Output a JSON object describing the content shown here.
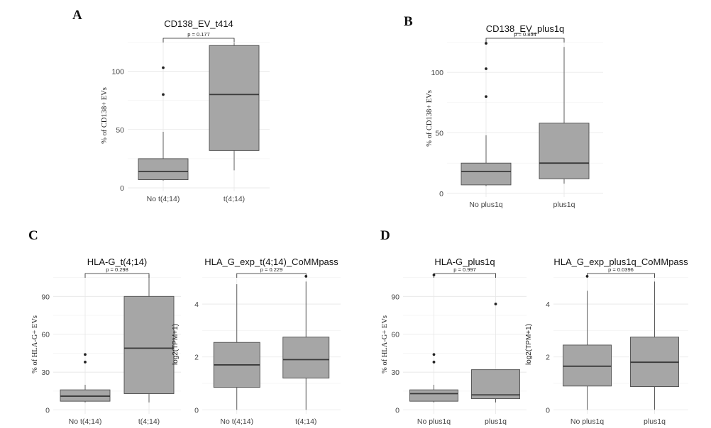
{
  "panel_labels": [
    "A",
    "B",
    "C",
    "D"
  ],
  "colors": {
    "box_fill": "#a6a6a6",
    "box_stroke": "#4d4d4d",
    "median": "#3a3a3a",
    "outlier": "#222222",
    "grid": "#e6e6e6"
  },
  "chart_data": [
    {
      "type": "boxplot",
      "title": "CD138_EV_t414",
      "ylabel": "% of CD138+ EVs",
      "categories": [
        "No t(4;14)",
        "t(4;14)"
      ],
      "ylim": [
        -3,
        127
      ],
      "yticks": [
        0,
        50,
        100
      ],
      "p_label": "p = 0.177",
      "boxes": [
        {
          "whisker_low": 6,
          "q1": 7,
          "median": 14,
          "q3": 25,
          "whisker_high": 48,
          "outliers": [
            80,
            103
          ]
        },
        {
          "whisker_low": 15,
          "q1": 32,
          "median": 80,
          "q3": 122,
          "whisker_high": 124,
          "outliers": []
        }
      ]
    },
    {
      "type": "boxplot",
      "title": "CD138_EV_plus1q",
      "ylabel": "% of CD138+ EVs",
      "categories": [
        "No plus1q",
        "plus1q"
      ],
      "ylim": [
        -3,
        127
      ],
      "yticks": [
        0,
        50,
        100
      ],
      "p_label": "p = 0.854",
      "boxes": [
        {
          "whisker_low": 6,
          "q1": 7,
          "median": 18,
          "q3": 25,
          "whisker_high": 48,
          "outliers": [
            80,
            103,
            124
          ]
        },
        {
          "whisker_low": 8,
          "q1": 12,
          "median": 25,
          "q3": 58,
          "whisker_high": 121,
          "outliers": []
        }
      ]
    },
    {
      "type": "boxplot",
      "title": "HLA-G_t(4;14)",
      "ylabel": "% of HLA-G+ EVs",
      "categories": [
        "No t(4;14)",
        "t(4;14)"
      ],
      "ylim": [
        -3,
        107
      ],
      "yticks": [
        0,
        30,
        60,
        90
      ],
      "p_label": "p = 0.298",
      "boxes": [
        {
          "whisker_low": 6,
          "q1": 7,
          "median": 11,
          "q3": 16,
          "whisker_high": 20,
          "outliers": [
            38,
            44
          ]
        },
        {
          "whisker_low": 6,
          "q1": 13,
          "median": 49,
          "q3": 90,
          "whisker_high": 107,
          "outliers": []
        }
      ]
    },
    {
      "type": "boxplot",
      "title": "HLA_G_exp_t(4;14)_CoMMpass",
      "ylabel": "log2(TPM+1)",
      "categories": [
        "No t(4;14)",
        "t(4;14)"
      ],
      "ylim": [
        -0.15,
        5.1
      ],
      "yticks": [
        0,
        2,
        4
      ],
      "p_label": "p = 0.229",
      "boxes": [
        {
          "whisker_low": 0,
          "q1": 0.85,
          "median": 1.7,
          "q3": 2.55,
          "whisker_high": 4.75,
          "outliers": []
        },
        {
          "whisker_low": 0,
          "q1": 1.2,
          "median": 1.9,
          "q3": 2.75,
          "whisker_high": 4.85,
          "outliers": [
            5.05
          ]
        }
      ]
    },
    {
      "type": "boxplot",
      "title": "HLA-G_plus1q",
      "ylabel": "% of HLA-G+ EVs",
      "categories": [
        "No plus1q",
        "plus1q"
      ],
      "ylim": [
        -3,
        107
      ],
      "yticks": [
        0,
        30,
        60,
        90
      ],
      "p_label": "p = 0.997",
      "boxes": [
        {
          "whisker_low": 6,
          "q1": 7,
          "median": 13,
          "q3": 16,
          "whisker_high": 20,
          "outliers": [
            38,
            44,
            107
          ]
        },
        {
          "whisker_low": 6,
          "q1": 9,
          "median": 12,
          "q3": 32,
          "whisker_high": 32,
          "outliers": [
            84
          ]
        }
      ]
    },
    {
      "type": "boxplot",
      "title": "HLA_G_exp_plus1q_CoMMpass",
      "ylabel": "log2(TPM+1)",
      "categories": [
        "No plus1q",
        "plus1q"
      ],
      "ylim": [
        -0.15,
        5.1
      ],
      "yticks": [
        0,
        2,
        4
      ],
      "p_label": "p = 0.0396",
      "boxes": [
        {
          "whisker_low": 0,
          "q1": 0.9,
          "median": 1.65,
          "q3": 2.45,
          "whisker_high": 4.5,
          "outliers": [
            5.05
          ]
        },
        {
          "whisker_low": 0,
          "q1": 0.88,
          "median": 1.8,
          "q3": 2.75,
          "whisker_high": 4.85,
          "outliers": []
        }
      ]
    }
  ]
}
